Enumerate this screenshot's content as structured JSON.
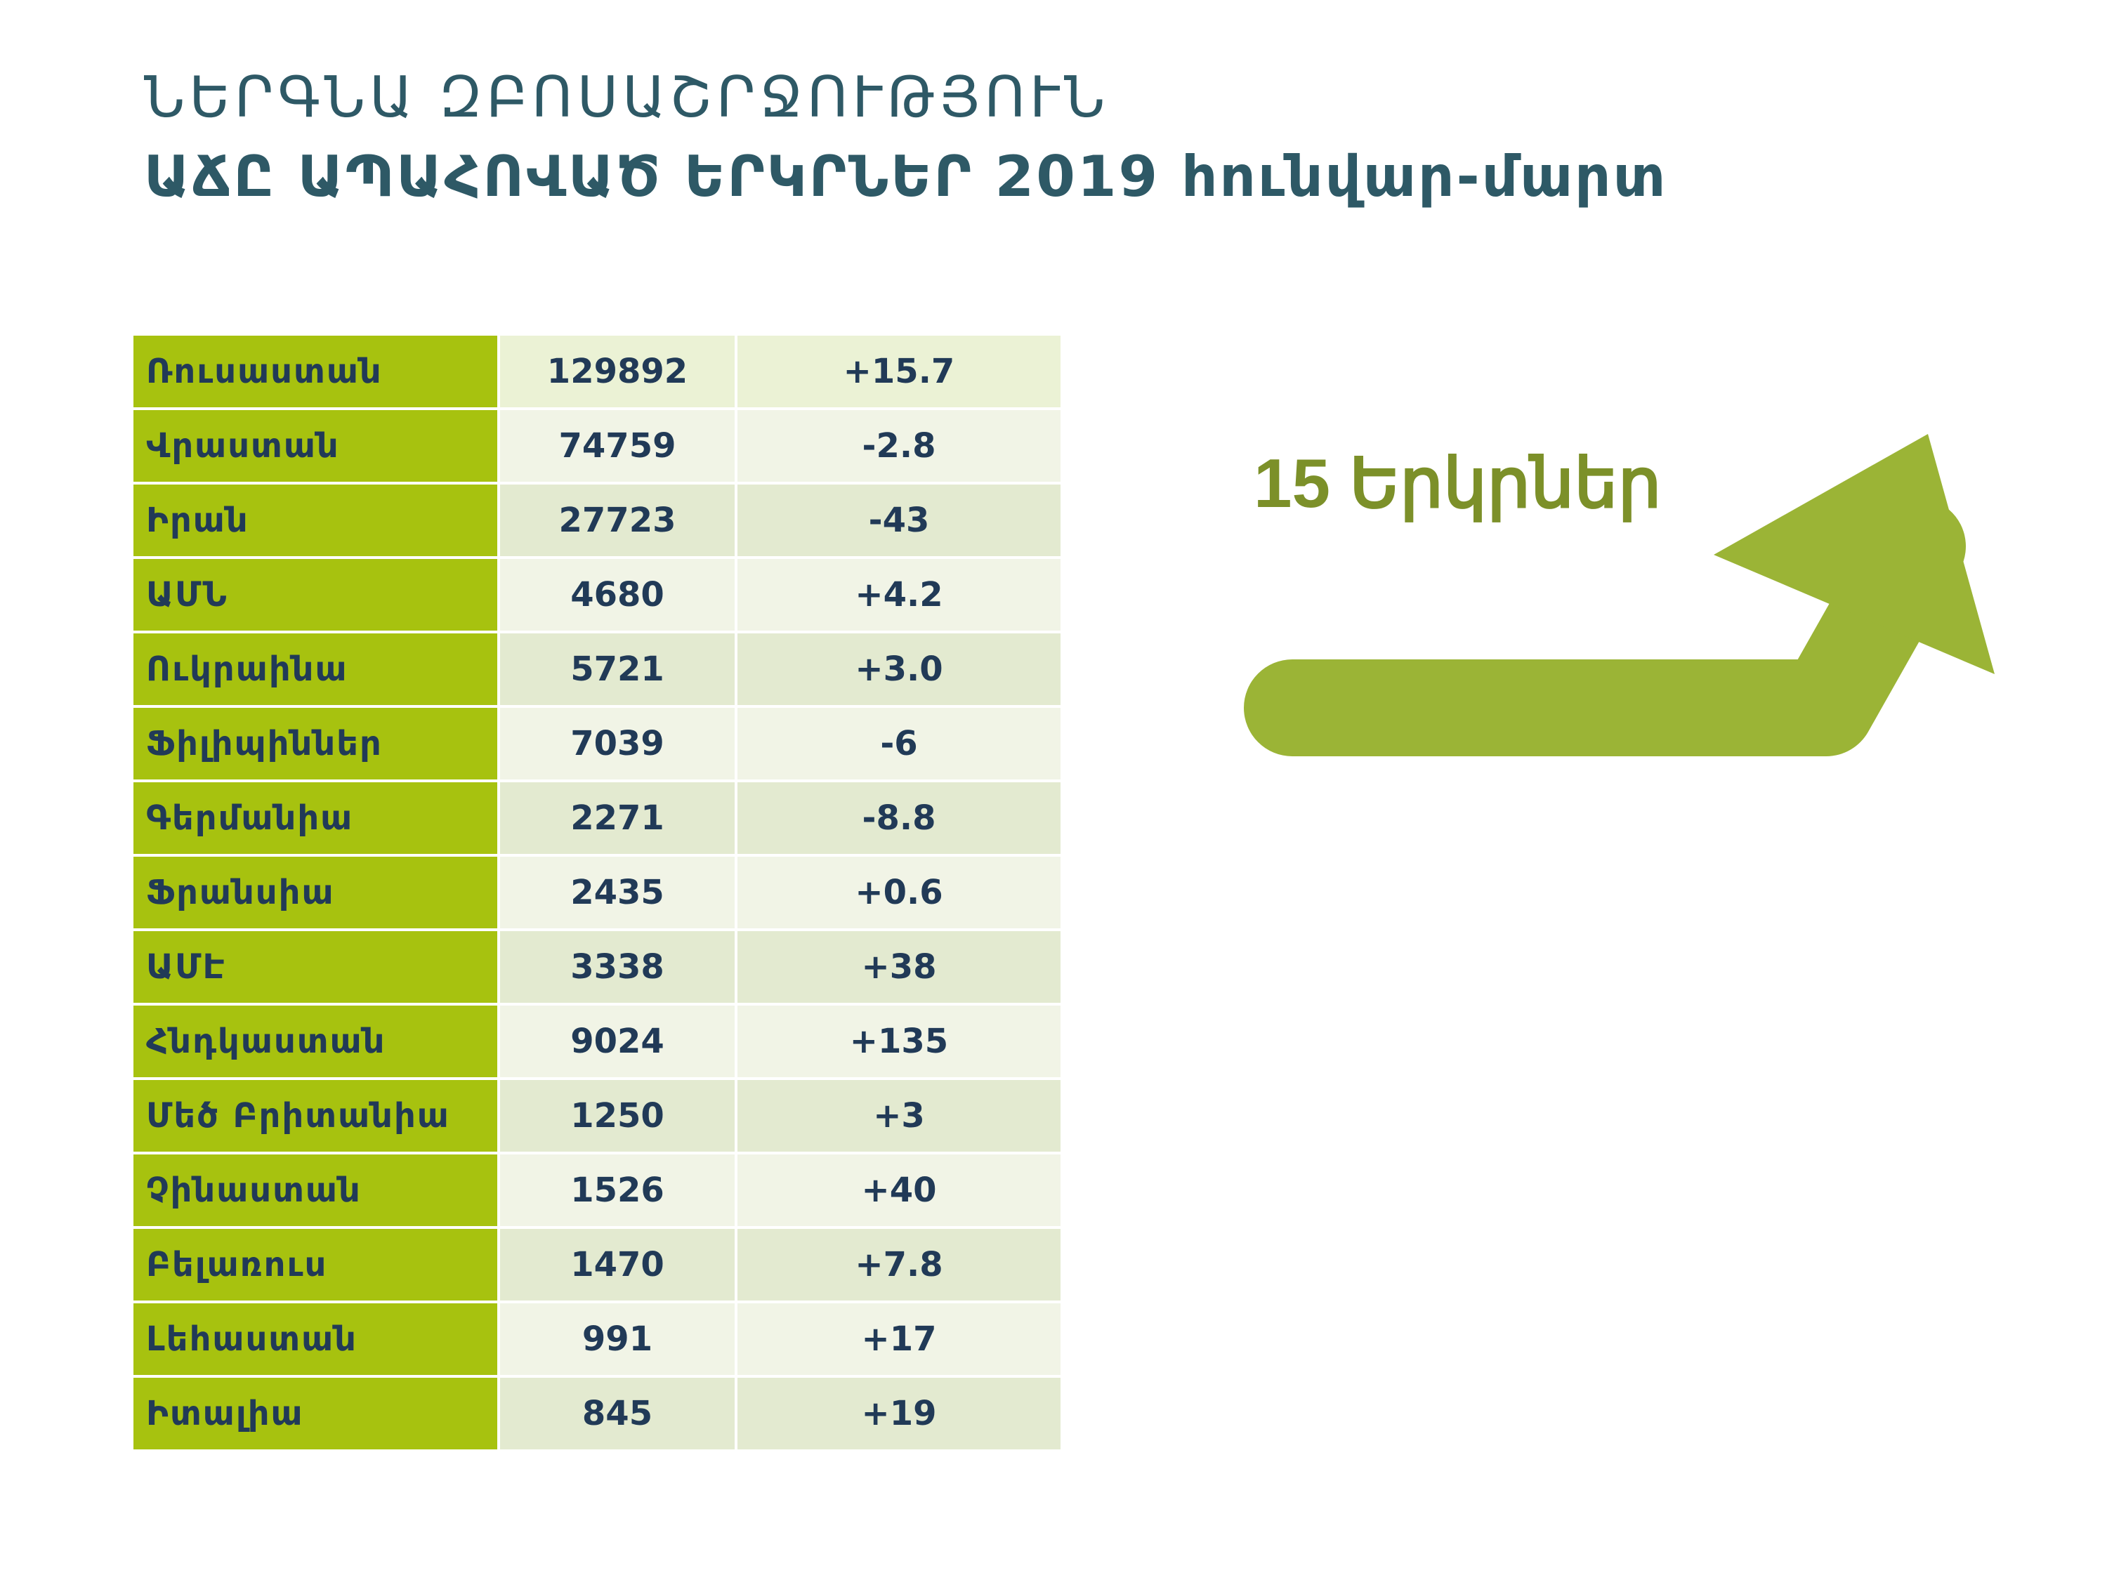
{
  "title": {
    "line1": "ՆԵՐԳՆԱ ԶԲՈՍԱՇՐՋՈՒԹՅՈՒՆ",
    "line2": "ԱՃԸ ԱՊԱՀՈՎԱԾ  ԵՐԿՐՆԵՐ 2019 հունվար-մարտ"
  },
  "countries_badge": {
    "label": "15 Երկրներ",
    "arrow_icon": "up-right-arrow-icon",
    "arrow_color": "#9bb436"
  },
  "colors": {
    "country_cell": "#a7c20f",
    "title_text": "#2e5966",
    "table_text": "#213a57",
    "badge_text": "#7c9029"
  },
  "table": {
    "rows": [
      {
        "country": "Ռուսաստան",
        "value": "129892",
        "change": "+15.7"
      },
      {
        "country": "Վրաստան",
        "value": "74759",
        "change": "-2.8"
      },
      {
        "country": "Իրան",
        "value": "27723",
        "change": "-43"
      },
      {
        "country": "ԱՄՆ",
        "value": "4680",
        "change": "+4.2"
      },
      {
        "country": "Ուկրաինա",
        "value": "5721",
        "change": "+3.0"
      },
      {
        "country": "Ֆիլիպիններ",
        "value": "7039",
        "change": "-6"
      },
      {
        "country": "Գերմանիա",
        "value": "2271",
        "change": "-8.8"
      },
      {
        "country": "Ֆրանսիա",
        "value": "2435",
        "change": "+0.6"
      },
      {
        "country": "ԱՄԷ",
        "value": "3338",
        "change": "+38"
      },
      {
        "country": "Հնդկաստան",
        "value": "9024",
        "change": "+135"
      },
      {
        "country": "Մեծ Բրիտանիա",
        "value": "1250",
        "change": "+3"
      },
      {
        "country": "Չինաստան",
        "value": "1526",
        "change": "+40"
      },
      {
        "country": "Բելառուս",
        "value": "1470",
        "change": "+7.8"
      },
      {
        "country": "Լեհաստան",
        "value": "991",
        "change": "+17"
      },
      {
        "country": "Իտալիա",
        "value": "845",
        "change": "+19"
      }
    ]
  }
}
